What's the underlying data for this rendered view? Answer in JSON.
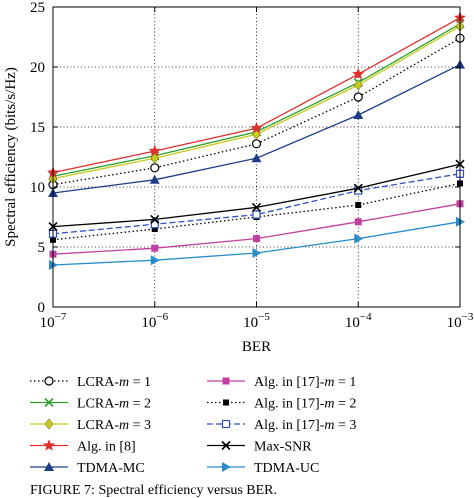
{
  "chart_data": {
    "type": "line",
    "title": "",
    "xlabel": "BER",
    "ylabel": "Spectral efficiency (bits/s/Hz)",
    "x_scale": "log",
    "x": [
      1e-07,
      1e-06,
      1e-05,
      0.0001,
      0.001
    ],
    "x_tick_labels": [
      {
        "base": "10",
        "exp": "−7"
      },
      {
        "base": "10",
        "exp": "−6"
      },
      {
        "base": "10",
        "exp": "−5"
      },
      {
        "base": "10",
        "exp": "−4"
      },
      {
        "base": "10",
        "exp": "−3"
      }
    ],
    "y_ticks": [
      0,
      5,
      10,
      15,
      20,
      25
    ],
    "ylim": [
      0,
      25
    ],
    "grid": "dotted, on",
    "legend_placement": "below plot, two columns",
    "series": [
      {
        "name": "LCRA-m = 1",
        "name_parts": [
          "LCRA-",
          "m",
          " = 1"
        ],
        "color": "#000000",
        "line": "dotted",
        "marker": "circle",
        "values": [
          10.2,
          11.6,
          13.6,
          17.5,
          22.4
        ]
      },
      {
        "name": "LCRA-m = 2",
        "name_parts": [
          "LCRA-",
          "m",
          " = 2"
        ],
        "color": "#2ca02c",
        "line": "solid",
        "marker": "x",
        "values": [
          10.9,
          12.6,
          14.6,
          18.7,
          23.6
        ]
      },
      {
        "name": "LCRA-m = 3",
        "name_parts": [
          "LCRA-",
          "m",
          " = 3"
        ],
        "color": "#c8c81e",
        "line": "solid",
        "marker": "diamond",
        "values": [
          10.7,
          12.4,
          14.4,
          18.5,
          23.4
        ]
      },
      {
        "name": "Alg. in [8]",
        "name_parts": [
          "Alg. in [8]",
          "",
          ""
        ],
        "color": "#e03030",
        "line": "solid",
        "marker": "star",
        "values": [
          11.2,
          13.0,
          14.9,
          19.4,
          24.1
        ]
      },
      {
        "name": "TDMA-MC",
        "name_parts": [
          "TDMA-MC",
          "",
          ""
        ],
        "color": "#1f3c88",
        "line": "solid",
        "marker": "triangle-up",
        "values": [
          9.5,
          10.6,
          12.4,
          16.0,
          20.2
        ]
      },
      {
        "name": "Alg. in [17]-m = 1",
        "name_parts": [
          "Alg. in [17]-",
          "m",
          " = 1"
        ],
        "color": "#c040a0",
        "line": "solid",
        "marker": "square",
        "values": [
          4.4,
          4.9,
          5.7,
          7.1,
          8.6
        ]
      },
      {
        "name": "Alg. in [17]-m = 2",
        "name_parts": [
          "Alg. in [17]-",
          "m",
          " = 2"
        ],
        "color": "#000000",
        "line": "dotted",
        "marker": "square-filled",
        "values": [
          5.6,
          6.5,
          7.5,
          8.5,
          10.3
        ]
      },
      {
        "name": "Alg. in [17]-m = 3",
        "name_parts": [
          "Alg. in [17]-",
          "m",
          " = 3"
        ],
        "color": "#3050c0",
        "line": "dashed",
        "marker": "square-open",
        "values": [
          6.1,
          6.9,
          7.7,
          9.7,
          11.1
        ]
      },
      {
        "name": "Max-SNR",
        "name_parts": [
          "Max-SNR",
          "",
          ""
        ],
        "color": "#000000",
        "line": "solid",
        "marker": "x",
        "values": [
          6.7,
          7.3,
          8.3,
          9.9,
          11.9
        ]
      },
      {
        "name": "TDMA-UC",
        "name_parts": [
          "TDMA-UC",
          "",
          ""
        ],
        "color": "#2a8cc8",
        "line": "solid",
        "marker": "triangle-right",
        "values": [
          3.5,
          3.9,
          4.5,
          5.7,
          7.1
        ]
      }
    ]
  },
  "caption": "FIGURE 7: Spectral efficiency versus BER."
}
